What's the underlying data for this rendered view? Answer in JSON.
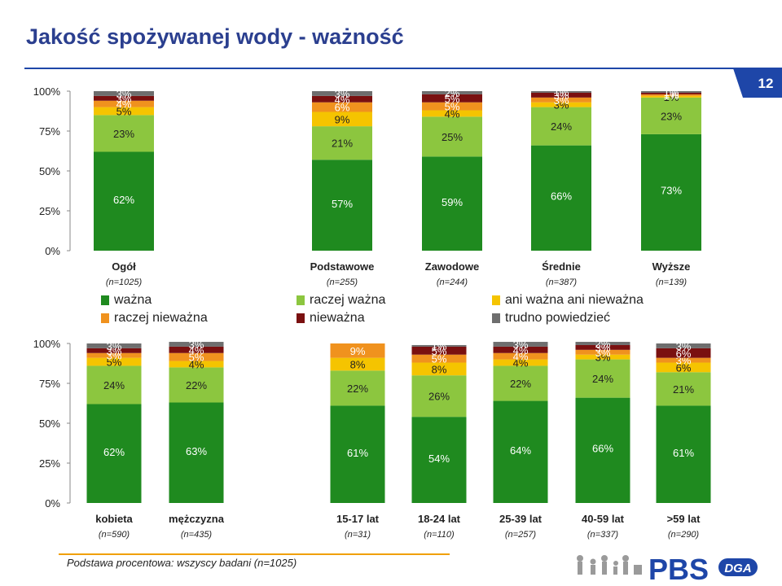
{
  "title": "Jakość spożywanej wody - ważność",
  "page_number": "12",
  "legend": [
    {
      "label": "ważna",
      "color": "#1f8a1f"
    },
    {
      "label": "raczej ważna",
      "color": "#8cc63f"
    },
    {
      "label": "ani ważna ani nieważna",
      "color": "#f5c400"
    },
    {
      "label": "raczej nieważna",
      "color": "#f0921e"
    },
    {
      "label": "nieważna",
      "color": "#7a1010"
    },
    {
      "label": "trudno powiedzieć",
      "color": "#6e6e6e"
    }
  ],
  "chart_data": [
    {
      "type": "bar",
      "stacked": true,
      "categories": [
        "Ogół",
        "Podstawowe",
        "Zawodowe",
        "Średnie",
        "Wyższe"
      ],
      "category_notes": [
        "(n=1025)",
        "(n=255)",
        "(n=244)",
        "(n=387)",
        "(n=139)"
      ],
      "yticks": [
        "100%",
        "75%",
        "50%",
        "25%",
        "0%"
      ],
      "ylim": [
        0,
        100
      ],
      "series": [
        {
          "name": "ważna",
          "values": [
            62,
            57,
            59,
            66,
            73
          ]
        },
        {
          "name": "raczej ważna",
          "values": [
            23,
            21,
            25,
            24,
            23
          ]
        },
        {
          "name": "ani ważna ani nieważna",
          "values": [
            5,
            9,
            4,
            3,
            1
          ]
        },
        {
          "name": "raczej nieważna",
          "values": [
            4,
            6,
            5,
            3,
            1
          ]
        },
        {
          "name": "nieważna",
          "values": [
            3,
            4,
            5,
            3,
            1
          ]
        },
        {
          "name": "trudno powiedzieć",
          "values": [
            3,
            3,
            2,
            1,
            1
          ]
        }
      ]
    },
    {
      "type": "bar",
      "stacked": true,
      "categories": [
        "kobieta",
        "mężczyzna",
        "15-17 lat",
        "18-24 lat",
        "25-39 lat",
        "40-59 lat",
        ">59 lat"
      ],
      "category_notes": [
        "(n=590)",
        "(n=435)",
        "(n=31)",
        "(n=110)",
        "(n=257)",
        "(n=337)",
        "(n=290)"
      ],
      "yticks": [
        "100%",
        "75%",
        "50%",
        "25%",
        "0%"
      ],
      "ylim": [
        0,
        100
      ],
      "series": [
        {
          "name": "ważna",
          "values": [
            62,
            63,
            61,
            54,
            64,
            66,
            61
          ]
        },
        {
          "name": "raczej ważna",
          "values": [
            24,
            22,
            22,
            26,
            22,
            24,
            21
          ]
        },
        {
          "name": "ani ważna ani nieważna",
          "values": [
            5,
            4,
            8,
            8,
            4,
            3,
            6
          ]
        },
        {
          "name": "raczej nieważna",
          "values": [
            3,
            5,
            9,
            5,
            4,
            3,
            3
          ]
        },
        {
          "name": "nieważna",
          "values": [
            3,
            4,
            0,
            5,
            4,
            3,
            6
          ]
        },
        {
          "name": "trudno powiedzieć",
          "values": [
            3,
            3,
            0,
            1,
            3,
            2,
            3
          ]
        }
      ]
    }
  ],
  "footer": "Podstawa procentowa: wszyscy badani (n=1025)",
  "logo": {
    "text": "PBS",
    "brand": "DGA"
  }
}
